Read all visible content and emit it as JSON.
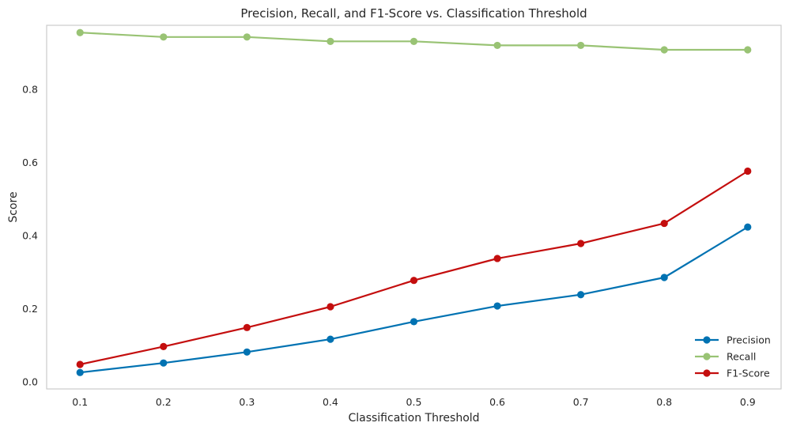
{
  "chart_data": {
    "type": "line",
    "title": "Precision, Recall, and F1-Score vs. Classification Threshold",
    "xlabel": "Classification Threshold",
    "ylabel": "Score",
    "x": [
      0.1,
      0.2,
      0.3,
      0.4,
      0.5,
      0.6,
      0.7,
      0.8,
      0.9
    ],
    "x_tick_labels": [
      "0.1",
      "0.2",
      "0.3",
      "0.4",
      "0.5",
      "0.6",
      "0.7",
      "0.8",
      "0.9"
    ],
    "y_ticks": [
      0.0,
      0.2,
      0.4,
      0.6,
      0.8
    ],
    "y_tick_labels": [
      "0.0",
      "0.2",
      "0.4",
      "0.6",
      "0.8"
    ],
    "xlim": [
      0.06,
      0.94
    ],
    "ylim": [
      -0.02,
      0.975
    ],
    "grid": false,
    "legend_position": "bottom-right",
    "series": [
      {
        "name": "Precision",
        "color": "#0072b2",
        "marker": "circle",
        "values": [
          0.025,
          0.051,
          0.081,
          0.116,
          0.164,
          0.207,
          0.238,
          0.285,
          0.423
        ]
      },
      {
        "name": "Recall",
        "color": "#99c374",
        "marker": "circle",
        "values": [
          0.955,
          0.943,
          0.943,
          0.931,
          0.931,
          0.92,
          0.92,
          0.908,
          0.908
        ]
      },
      {
        "name": "F1-Score",
        "color": "#c40e0e",
        "marker": "circle",
        "values": [
          0.047,
          0.096,
          0.148,
          0.205,
          0.277,
          0.337,
          0.378,
          0.433,
          0.576
        ]
      }
    ]
  }
}
